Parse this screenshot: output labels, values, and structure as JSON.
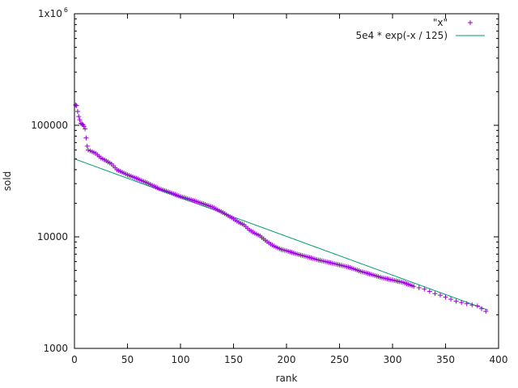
{
  "chart_data": {
    "type": "scatter",
    "xlabel": "rank",
    "ylabel": "sold",
    "xlim": [
      0,
      400
    ],
    "ylim": [
      1000,
      1000000
    ],
    "y_scale": "log",
    "legend_position": "top-right",
    "x_ticks": [
      "0",
      "50",
      "100",
      "150",
      "200",
      "250",
      "300",
      "350",
      "400"
    ],
    "y_ticks": [
      {
        "value": 1000,
        "label": "1000"
      },
      {
        "value": 10000,
        "label": "10000"
      },
      {
        "value": 100000,
        "label": "100000"
      },
      {
        "value": 1000000,
        "label": "1x10",
        "exp": "6"
      }
    ],
    "series": [
      {
        "name": "\"x\"",
        "kind": "points",
        "marker": "+",
        "color": "#9400d3",
        "anchors": [
          [
            1,
            152000
          ],
          [
            2,
            150000
          ],
          [
            3,
            133000
          ],
          [
            4,
            120000
          ],
          [
            5,
            112000
          ],
          [
            6,
            104000
          ],
          [
            7,
            103000
          ],
          [
            8,
            101000
          ],
          [
            9,
            98000
          ],
          [
            10,
            93000
          ],
          [
            11,
            77000
          ],
          [
            12,
            65000
          ],
          [
            13,
            60000
          ],
          [
            15,
            59000
          ],
          [
            20,
            56000
          ],
          [
            25,
            51000
          ],
          [
            30,
            48000
          ],
          [
            35,
            45000
          ],
          [
            40,
            40000
          ],
          [
            50,
            36000
          ],
          [
            60,
            33000
          ],
          [
            70,
            30000
          ],
          [
            80,
            27000
          ],
          [
            90,
            25000
          ],
          [
            100,
            23000
          ],
          [
            110,
            21500
          ],
          [
            120,
            20000
          ],
          [
            130,
            18500
          ],
          [
            140,
            16500
          ],
          [
            150,
            14500
          ],
          [
            155,
            13500
          ],
          [
            160,
            12800
          ],
          [
            165,
            11500
          ],
          [
            170,
            10800
          ],
          [
            175,
            10200
          ],
          [
            180,
            9300
          ],
          [
            185,
            8600
          ],
          [
            190,
            8100
          ],
          [
            195,
            7700
          ],
          [
            200,
            7500
          ],
          [
            210,
            7000
          ],
          [
            220,
            6600
          ],
          [
            230,
            6200
          ],
          [
            240,
            5900
          ],
          [
            250,
            5600
          ],
          [
            260,
            5300
          ],
          [
            270,
            4900
          ],
          [
            280,
            4600
          ],
          [
            290,
            4300
          ],
          [
            300,
            4100
          ],
          [
            310,
            3900
          ],
          [
            320,
            3600
          ],
          [
            330,
            3400
          ],
          [
            340,
            3100
          ],
          [
            345,
            3000
          ],
          [
            360,
            2650
          ],
          [
            375,
            2450
          ],
          [
            380,
            2400
          ],
          [
            388,
            2150
          ]
        ]
      },
      {
        "name": "5e4 * exp(-x / 125)",
        "kind": "line",
        "color": "#009e73",
        "amplitude": 50000,
        "decay": 125,
        "x_range": [
          0,
          390
        ]
      }
    ]
  }
}
